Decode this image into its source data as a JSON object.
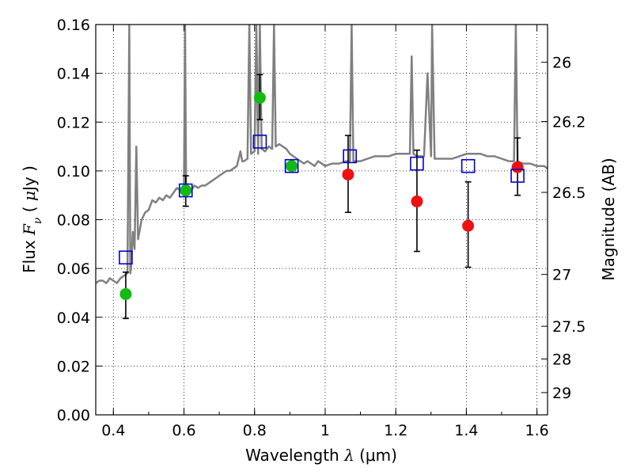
{
  "chart_data": {
    "type": "scatter",
    "title": "",
    "xlabel": "Wavelength λ (μm)",
    "ylabel": "Flux F_ν ( μJy )",
    "ylabel_right": "Magnitude (AB)",
    "xlim": [
      0.35,
      1.63
    ],
    "ylim": [
      0,
      0.16
    ],
    "grid": true,
    "legend": "none",
    "colors": {
      "model_line": "#808080",
      "square": "#0000cc",
      "green_point": "#11bb11",
      "red_point": "#ee1111",
      "errorbar": "#000000"
    },
    "x_ticks": [
      0.4,
      0.6,
      0.8,
      1.0,
      1.2,
      1.4,
      1.6
    ],
    "x_tick_labels": [
      "0.4",
      "0.6",
      "0.8",
      "1",
      "1.2",
      "1.4",
      "1.6"
    ],
    "y_ticks": [
      0,
      0.02,
      0.04,
      0.06,
      0.08,
      0.1,
      0.12,
      0.14,
      0.16
    ],
    "y_tick_labels": [
      "0.00",
      "0.02",
      "0.04",
      "0.06",
      "0.08",
      "0.10",
      "0.12",
      "0.14",
      "0.16"
    ],
    "right_ticks": [
      {
        "label": "26",
        "mag": 26
      },
      {
        "label": "26.2",
        "mag": 26.2
      },
      {
        "label": "26.5",
        "mag": 26.5
      },
      {
        "label": "27",
        "mag": 27
      },
      {
        "label": "27.5",
        "mag": 27.5
      },
      {
        "label": "28",
        "mag": 28
      },
      {
        "label": "29",
        "mag": 29
      }
    ],
    "series": [
      {
        "kind": "line",
        "points": [
          [
            0.35,
            0.054
          ],
          [
            0.36,
            0.055
          ],
          [
            0.37,
            0.055
          ],
          [
            0.38,
            0.054
          ],
          [
            0.39,
            0.056
          ],
          [
            0.4,
            0.055
          ],
          [
            0.41,
            0.054
          ],
          [
            0.42,
            0.056
          ],
          [
            0.43,
            0.057
          ],
          [
            0.44,
            0.058
          ],
          [
            0.445,
            0.16
          ],
          [
            0.448,
            0.058
          ],
          [
            0.45,
            0.06
          ],
          [
            0.455,
            0.075
          ],
          [
            0.46,
            0.068
          ],
          [
            0.465,
            0.11
          ],
          [
            0.47,
            0.072
          ],
          [
            0.48,
            0.08
          ],
          [
            0.49,
            0.083
          ],
          [
            0.5,
            0.084
          ],
          [
            0.51,
            0.088
          ],
          [
            0.52,
            0.087
          ],
          [
            0.53,
            0.089
          ],
          [
            0.54,
            0.088
          ],
          [
            0.55,
            0.09
          ],
          [
            0.56,
            0.089
          ],
          [
            0.57,
            0.091
          ],
          [
            0.58,
            0.093
          ],
          [
            0.59,
            0.092
          ],
          [
            0.6,
            0.093
          ],
          [
            0.603,
            0.16
          ],
          [
            0.606,
            0.093
          ],
          [
            0.61,
            0.092
          ],
          [
            0.62,
            0.092
          ],
          [
            0.63,
            0.094
          ],
          [
            0.64,
            0.093
          ],
          [
            0.65,
            0.094
          ],
          [
            0.66,
            0.094
          ],
          [
            0.67,
            0.095
          ],
          [
            0.68,
            0.096
          ],
          [
            0.69,
            0.097
          ],
          [
            0.7,
            0.098
          ],
          [
            0.71,
            0.099
          ],
          [
            0.72,
            0.1
          ],
          [
            0.73,
            0.1
          ],
          [
            0.74,
            0.101
          ],
          [
            0.75,
            0.102
          ],
          [
            0.76,
            0.108
          ],
          [
            0.765,
            0.104
          ],
          [
            0.77,
            0.104
          ],
          [
            0.78,
            0.105
          ],
          [
            0.785,
            0.16
          ],
          [
            0.79,
            0.107
          ],
          [
            0.8,
            0.108
          ],
          [
            0.805,
            0.16
          ],
          [
            0.81,
            0.107
          ],
          [
            0.815,
            0.16
          ],
          [
            0.82,
            0.109
          ],
          [
            0.83,
            0.108
          ],
          [
            0.84,
            0.11
          ],
          [
            0.85,
            0.109
          ],
          [
            0.855,
            0.16
          ],
          [
            0.86,
            0.11
          ],
          [
            0.87,
            0.111
          ],
          [
            0.88,
            0.11
          ],
          [
            0.89,
            0.109
          ],
          [
            0.9,
            0.107
          ],
          [
            0.91,
            0.106
          ],
          [
            0.92,
            0.105
          ],
          [
            0.93,
            0.104
          ],
          [
            0.94,
            0.103
          ],
          [
            0.95,
            0.104
          ],
          [
            0.96,
            0.103
          ],
          [
            0.97,
            0.102
          ],
          [
            0.98,
            0.104
          ],
          [
            0.99,
            0.103
          ],
          [
            1.0,
            0.102
          ],
          [
            1.02,
            0.103
          ],
          [
            1.04,
            0.103
          ],
          [
            1.06,
            0.104
          ],
          [
            1.07,
            0.104
          ],
          [
            1.075,
            0.16
          ],
          [
            1.08,
            0.104
          ],
          [
            1.1,
            0.104
          ],
          [
            1.12,
            0.105
          ],
          [
            1.14,
            0.106
          ],
          [
            1.16,
            0.106
          ],
          [
            1.18,
            0.106
          ],
          [
            1.2,
            0.107
          ],
          [
            1.22,
            0.107
          ],
          [
            1.24,
            0.107
          ],
          [
            1.245,
            0.147
          ],
          [
            1.25,
            0.107
          ],
          [
            1.26,
            0.106
          ],
          [
            1.28,
            0.106
          ],
          [
            1.29,
            0.14
          ],
          [
            1.3,
            0.106
          ],
          [
            1.303,
            0.16
          ],
          [
            1.31,
            0.105
          ],
          [
            1.32,
            0.105
          ],
          [
            1.34,
            0.105
          ],
          [
            1.36,
            0.105
          ],
          [
            1.38,
            0.106
          ],
          [
            1.4,
            0.107
          ],
          [
            1.42,
            0.107
          ],
          [
            1.44,
            0.107
          ],
          [
            1.46,
            0.106
          ],
          [
            1.48,
            0.106
          ],
          [
            1.5,
            0.105
          ],
          [
            1.52,
            0.104
          ],
          [
            1.535,
            0.104
          ],
          [
            1.54,
            0.16
          ],
          [
            1.545,
            0.104
          ],
          [
            1.56,
            0.103
          ],
          [
            1.58,
            0.103
          ],
          [
            1.6,
            0.102
          ],
          [
            1.62,
            0.102
          ],
          [
            1.63,
            0.101
          ]
        ]
      },
      {
        "kind": "square",
        "points": [
          [
            0.435,
            0.0645
          ],
          [
            0.605,
            0.092
          ],
          [
            0.815,
            0.112
          ],
          [
            0.905,
            0.102
          ],
          [
            1.07,
            0.106
          ],
          [
            1.26,
            0.103
          ],
          [
            1.405,
            0.102
          ],
          [
            1.545,
            0.098
          ]
        ]
      },
      {
        "kind": "point_green",
        "points": [
          {
            "x": 0.435,
            "y": 0.0495,
            "yerr_low": 0.0395,
            "yerr_high": 0.0585
          },
          {
            "x": 0.605,
            "y": 0.092,
            "yerr_low": 0.0855,
            "yerr_high": 0.098
          },
          {
            "x": 0.815,
            "y": 0.13,
            "yerr_low": 0.121,
            "yerr_high": 0.1395
          },
          {
            "x": 0.905,
            "y": 0.102,
            "yerr_low": null,
            "yerr_high": null
          }
        ]
      },
      {
        "kind": "point_red",
        "points": [
          {
            "x": 1.065,
            "y": 0.0985,
            "yerr_low": 0.083,
            "yerr_high": 0.1145
          },
          {
            "x": 1.26,
            "y": 0.0875,
            "yerr_low": 0.067,
            "yerr_high": 0.1085
          },
          {
            "x": 1.405,
            "y": 0.0775,
            "yerr_low": 0.0605,
            "yerr_high": 0.0955
          },
          {
            "x": 1.545,
            "y": 0.1015,
            "yerr_low": 0.09,
            "yerr_high": 0.1135
          }
        ]
      }
    ]
  }
}
